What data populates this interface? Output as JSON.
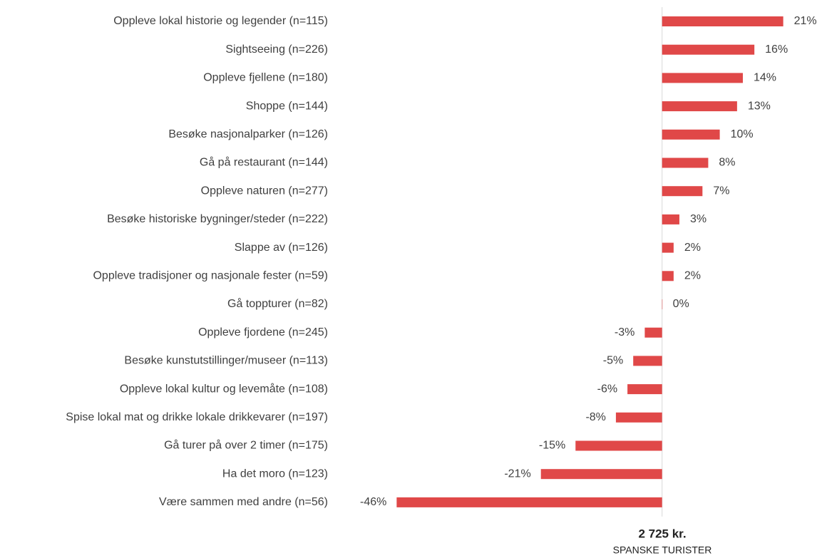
{
  "chart_data": {
    "type": "bar",
    "orientation": "horizontal",
    "categories": [
      "Oppleve lokal historie og legender (n=115)",
      "Sightseeing (n=226)",
      "Oppleve fjellene (n=180)",
      "Shoppe (n=144)",
      "Besøke nasjonalparker (n=126)",
      "Gå på restaurant (n=144)",
      "Oppleve naturen (n=277)",
      "Besøke historiske bygninger/steder (n=222)",
      "Slappe av (n=126)",
      "Oppleve tradisjoner og nasjonale fester (n=59)",
      "Gå toppturer (n=82)",
      "Oppleve fjordene (n=245)",
      "Besøke kunstutstillinger/museer (n=113)",
      "Oppleve lokal kultur og levemåte (n=108)",
      "Spise lokal mat og drikke lokale drikkevarer (n=197)",
      "Gå turer på over 2 timer (n=175)",
      "Ha det moro (n=123)",
      "Være sammen med andre (n=56)"
    ],
    "values": [
      21,
      16,
      14,
      13,
      10,
      8,
      7,
      3,
      2,
      2,
      0,
      -3,
      -5,
      -6,
      -8,
      -15,
      -21,
      -46
    ],
    "value_labels": [
      "21%",
      "16%",
      "14%",
      "13%",
      "10%",
      "8%",
      "7%",
      "3%",
      "2%",
      "2%",
      "0%",
      "-3%",
      "-5%",
      "-6%",
      "-8%",
      "-15%",
      "-21%",
      "-46%"
    ],
    "color": "#e04848",
    "xlim": [
      -50,
      25
    ],
    "annotations": [
      "2 725 kr.",
      "SPANSKE TURISTER"
    ]
  }
}
